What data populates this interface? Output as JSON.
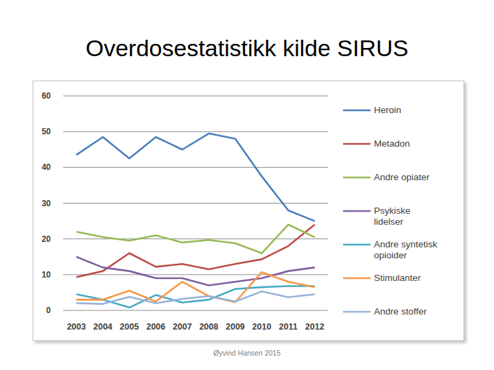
{
  "chart_data": {
    "type": "line",
    "title": "Overdosestatistikk kilde SIRUS",
    "annotations": [
      "Øyvind Hansen 2015"
    ],
    "categories": [
      "2003",
      "2004",
      "2005",
      "2006",
      "2007",
      "2008",
      "2009",
      "2010",
      "2011",
      "2012"
    ],
    "series": [
      {
        "name": "Heroin",
        "color": "#4a7ebb",
        "values": [
          43.5,
          48.5,
          42.5,
          48.5,
          45,
          49.5,
          48,
          37.5,
          28,
          25
        ]
      },
      {
        "name": "Metadon",
        "color": "#be4b48",
        "values": [
          9.3,
          11,
          16,
          12.2,
          13,
          11.5,
          13,
          14.3,
          18,
          24
        ]
      },
      {
        "name": "Andre opiater",
        "color": "#98b954",
        "values": [
          22,
          20.5,
          19.5,
          21,
          19,
          19.7,
          18.8,
          16,
          24,
          20.5
        ]
      },
      {
        "name": "Psykiske lidelser",
        "color": "#7d60a0",
        "values": [
          15,
          12,
          11,
          9,
          9,
          7,
          8,
          9,
          11,
          12
        ]
      },
      {
        "name": "Andre syntetisk opioider",
        "color": "#46aac5",
        "values": [
          4.5,
          3,
          0.8,
          4.3,
          2.2,
          3,
          6,
          6.5,
          6.8,
          6.8
        ]
      },
      {
        "name": "Stimulanter",
        "color": "#f79646",
        "values": [
          3,
          3,
          5.5,
          2.5,
          8,
          4,
          2.3,
          10.7,
          8,
          6.5
        ]
      },
      {
        "name": "Andre stoffer",
        "color": "#95b3d7",
        "values": [
          2,
          1.8,
          3.8,
          2,
          3.2,
          4,
          2.5,
          5.3,
          3.7,
          4.5
        ]
      }
    ],
    "ylim": [
      0,
      60
    ],
    "yticks": [
      0,
      10,
      20,
      30,
      40,
      50,
      60
    ],
    "grid": true,
    "legend": "right"
  }
}
